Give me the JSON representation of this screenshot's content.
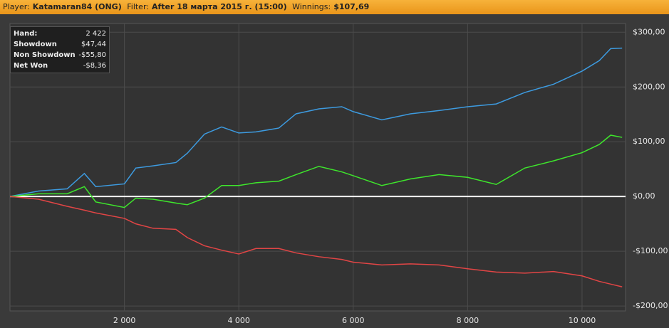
{
  "header": {
    "player_label": "Player:",
    "player": "Katamaran84 (ONG)",
    "filter_label": "Filter:",
    "filter": "After 18 марта 2015 г. (15:00)",
    "winnings_label": "Winnings:",
    "winnings": "$107,69"
  },
  "stats": {
    "rows": [
      [
        "Hand:",
        "2 422"
      ],
      [
        "Showdown",
        "$47,44"
      ],
      [
        "Non Showdown",
        "-$55,80"
      ],
      [
        "Net Won",
        "-$8,36"
      ]
    ]
  },
  "chart_data": {
    "type": "line",
    "x": [
      0,
      500,
      1000,
      1300,
      1500,
      2000,
      2200,
      2500,
      2900,
      3100,
      3400,
      3700,
      4000,
      4300,
      4700,
      5000,
      5400,
      5800,
      6000,
      6500,
      7000,
      7500,
      8000,
      8500,
      9000,
      9500,
      10000,
      10300,
      10500,
      10700
    ],
    "series": [
      {
        "color": "#3d9be0",
        "values": [
          0,
          10,
          14,
          42,
          18,
          23,
          52,
          56,
          62,
          79,
          114,
          127,
          116,
          118,
          125,
          151,
          160,
          164,
          155,
          140,
          151,
          157,
          164,
          169,
          190,
          205,
          229,
          248,
          270,
          271
        ]
      },
      {
        "color": "#3ee62c",
        "values": [
          0,
          5,
          5,
          18,
          -10,
          -20,
          -3,
          -5,
          -12,
          -15,
          -3,
          20,
          20,
          25,
          28,
          40,
          55,
          45,
          38,
          20,
          32,
          40,
          35,
          22,
          52,
          65,
          80,
          95,
          112,
          108
        ]
      },
      {
        "color": "#e24545",
        "values": [
          0,
          -5,
          -18,
          -25,
          -30,
          -40,
          -50,
          -58,
          -60,
          -75,
          -90,
          -98,
          -105,
          -95,
          -95,
          -103,
          -110,
          -115,
          -120,
          -125,
          -123,
          -125,
          -132,
          -138,
          -140,
          -137,
          -145,
          -155,
          -160,
          -165
        ]
      }
    ],
    "xlim": [
      0,
      10760
    ],
    "ylim": [
      -209,
      316
    ],
    "xticks": [
      {
        "value": 2000,
        "label": "2 000"
      },
      {
        "value": 4000,
        "label": "4 000"
      },
      {
        "value": 6000,
        "label": "6 000"
      },
      {
        "value": 8000,
        "label": "8 000"
      },
      {
        "value": 10000,
        "label": "10 000"
      }
    ],
    "yticks": [
      {
        "value": 300,
        "label": "$300,00"
      },
      {
        "value": 200,
        "label": "$200,00"
      },
      {
        "value": 100,
        "label": "$100,00"
      },
      {
        "value": 0,
        "label": "$0,00"
      },
      {
        "value": -100,
        "label": "-$100,00"
      },
      {
        "value": -200,
        "label": "-$200,00"
      }
    ],
    "grid": true
  }
}
